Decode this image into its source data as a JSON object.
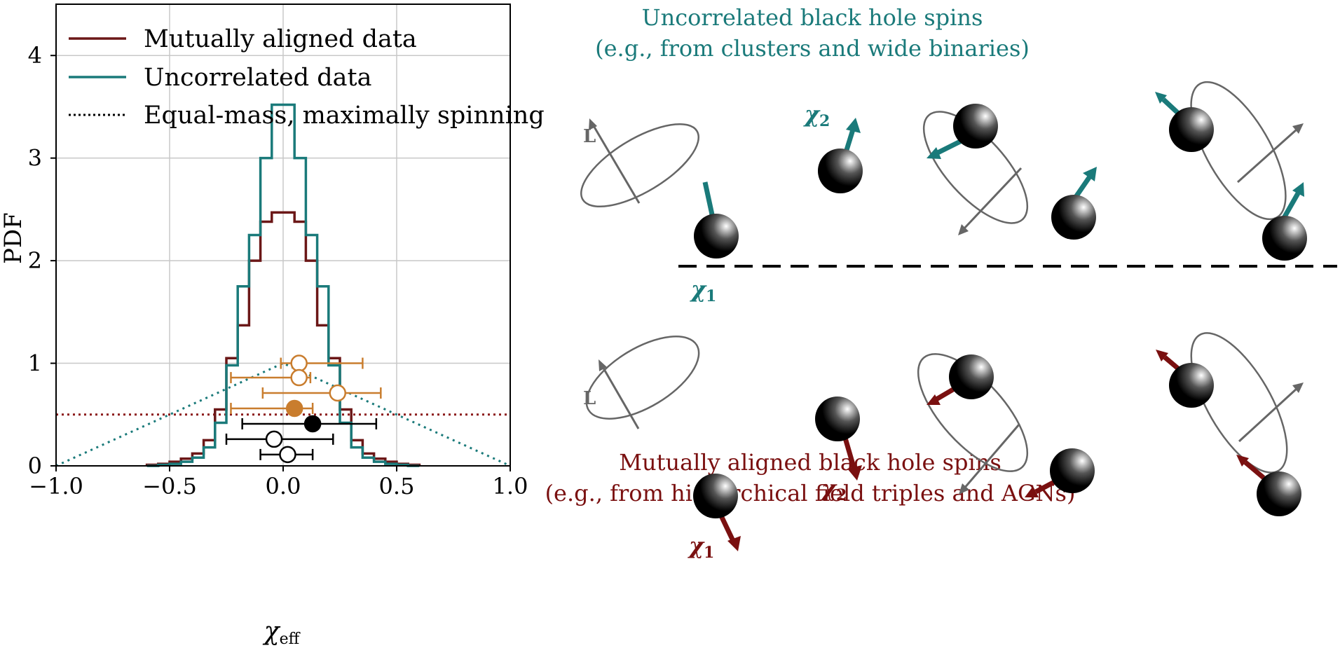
{
  "chart_data": {
    "type": "step-histogram",
    "xlabel": "χ",
    "xlabel_sub": "eff",
    "ylabel": "PDF",
    "xlim": [
      -1.0,
      1.0
    ],
    "ylim": [
      0,
      4.5
    ],
    "xticks": [
      -1.0,
      -0.5,
      0.0,
      0.5,
      1.0
    ],
    "xtick_labels": [
      "−1.0",
      "−0.5",
      "0.0",
      "0.5",
      "1.0"
    ],
    "yticks": [
      0,
      1,
      2,
      3,
      4
    ],
    "ytick_labels": [
      "0",
      "1",
      "2",
      "3",
      "4"
    ],
    "grid": true,
    "legend": {
      "placement": "top-left",
      "entries": [
        {
          "label": "Mutually aligned data",
          "color": "#6b1717",
          "style": "solid"
        },
        {
          "label": "Uncorrelated data",
          "color": "#1a7a7a",
          "style": "solid"
        },
        {
          "label": "Equal-mass, maximally spinning",
          "color": "#000000",
          "style": "dotted"
        }
      ]
    },
    "bin_edges": [
      -0.6,
      -0.55,
      -0.5,
      -0.45,
      -0.4,
      -0.35,
      -0.3,
      -0.25,
      -0.2,
      -0.15,
      -0.1,
      -0.05,
      0.0,
      0.05,
      0.1,
      0.15,
      0.2,
      0.25,
      0.3,
      0.35,
      0.4,
      0.45,
      0.5,
      0.55,
      0.6
    ],
    "series": [
      {
        "name": "Mutually aligned data",
        "color": "#6b1717",
        "values": [
          0.01,
          0.02,
          0.04,
          0.07,
          0.12,
          0.25,
          0.55,
          1.05,
          1.37,
          2.0,
          2.38,
          2.47,
          2.47,
          2.38,
          2.0,
          1.37,
          1.05,
          0.55,
          0.25,
          0.12,
          0.07,
          0.04,
          0.02,
          0.01
        ]
      },
      {
        "name": "Uncorrelated data",
        "color": "#1a7a7a",
        "values": [
          0.0,
          0.01,
          0.02,
          0.04,
          0.08,
          0.18,
          0.42,
          0.98,
          1.75,
          2.25,
          3.0,
          3.52,
          3.52,
          3.0,
          2.25,
          1.75,
          0.98,
          0.42,
          0.18,
          0.08,
          0.04,
          0.02,
          0.01,
          0.0
        ]
      }
    ],
    "reference_lines": [
      {
        "name": "aligned-uniform",
        "type": "horizontal",
        "y": 0.5,
        "color": "#8b1a1a",
        "style": "dotted"
      },
      {
        "name": "equal-mass-triangle",
        "type": "polyline",
        "x": [
          -1.0,
          0.0,
          1.0
        ],
        "y": [
          0.0,
          1.0,
          0.0
        ],
        "color": "#1a7a7a",
        "style": "dotted"
      }
    ],
    "points": [
      {
        "x": 0.07,
        "y": 1.0,
        "xerr_low": 0.08,
        "xerr_high": 0.28,
        "color": "#c97d2e",
        "filled": false
      },
      {
        "x": 0.07,
        "y": 0.86,
        "xerr_low": 0.3,
        "xerr_high": 0.05,
        "color": "#c97d2e",
        "filled": false
      },
      {
        "x": 0.24,
        "y": 0.71,
        "xerr_low": 0.33,
        "xerr_high": 0.19,
        "color": "#c97d2e",
        "filled": false
      },
      {
        "x": 0.05,
        "y": 0.56,
        "xerr_low": 0.28,
        "xerr_high": 0.08,
        "color": "#c97d2e",
        "filled": true
      },
      {
        "x": 0.13,
        "y": 0.41,
        "xerr_low": 0.31,
        "xerr_high": 0.28,
        "color": "#000000",
        "filled": true
      },
      {
        "x": -0.04,
        "y": 0.26,
        "xerr_low": 0.21,
        "xerr_high": 0.26,
        "color": "#000000",
        "filled": false
      },
      {
        "x": 0.02,
        "y": 0.11,
        "xerr_low": 0.12,
        "xerr_high": 0.11,
        "color": "#000000",
        "filled": false
      }
    ]
  },
  "diagram": {
    "top_title_line1": "Uncorrelated black hole spins",
    "top_title_line2": "(e.g., from clusters and wide binaries)",
    "bottom_title_line1": "Mutually aligned black hole spins",
    "bottom_title_line2": "(e.g., from hierarchical field triples and AGNs)",
    "L_label": "L",
    "chi1_label": "χ",
    "chi1_sub": "1",
    "chi2_label": "χ",
    "chi2_sub": "2",
    "teal": "#1a7a7a",
    "red": "#7a1010"
  }
}
